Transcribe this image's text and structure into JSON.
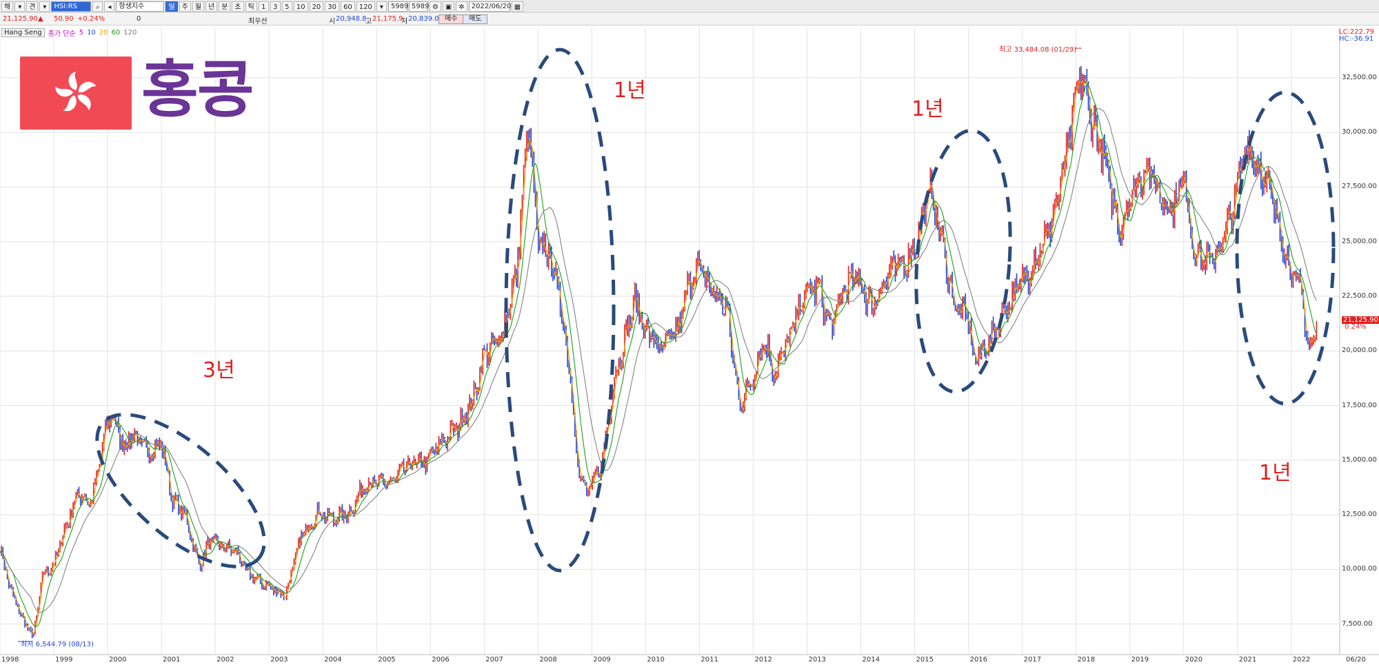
{
  "toolbar": {
    "b1": "해",
    "b2": "▾",
    "b3": "견",
    "b4": "▾",
    "symbol": "HSI:RS",
    "index_name": "항생지수",
    "periods": [
      "일",
      "주",
      "월",
      "년",
      "분",
      "초",
      "틱",
      "1",
      "3",
      "5",
      "10",
      "20",
      "30",
      "60",
      "120"
    ],
    "active_period": "일",
    "count": "5989",
    "total": "5989",
    "date": "2022/06/20"
  },
  "quote": {
    "price": "21,125.90",
    "arrow": "▲",
    "change": "50.90",
    "pct": "+0.24%",
    "volume": "0",
    "name_label": "최우선",
    "open_label": "시",
    "open": "20,948.8",
    "high_label": "고",
    "high": "21,175.9",
    "low_label": "저",
    "low": "20,839.0",
    "buy": "매수",
    "sell": "매도"
  },
  "legend": {
    "series_name": "Hang Seng",
    "ma_label": "종가 단순",
    "ma": [
      "5",
      "10",
      "20",
      "60",
      "120"
    ]
  },
  "overlay": {
    "title": "홍콩",
    "annot_3y": "3년",
    "annot_1y_a": "1년",
    "annot_1y_b": "1년",
    "annot_1y_c": "1년"
  },
  "corner": {
    "lc": "LC:222.79",
    "hc": "HC:-36.91"
  },
  "extremes": {
    "max_text": "최고 33,484.08 (01/29)",
    "min_text": "최저 6,544.79 (08/13)"
  },
  "last_price_tag": "21,125.90",
  "last_pct_tag": "0.24%",
  "colors": {
    "ma5": "#d400d4",
    "ma10": "#1f45d6",
    "ma20": "#f5a000",
    "ma60": "#18a018",
    "ma120": "#777777",
    "candle_up": "#e0201f",
    "candle_down": "#1f45d6",
    "ellipse": "#2a4a7c"
  },
  "chart_data": {
    "type": "line",
    "title": "Hang Seng",
    "x_axis_labels": [
      "1998",
      "1999",
      "2000",
      "2001",
      "2002",
      "2003",
      "2004",
      "2005",
      "2006",
      "2007",
      "2008",
      "2009",
      "2010",
      "2011",
      "2012",
      "2013",
      "2014",
      "2015",
      "2016",
      "2017",
      "2018",
      "2019",
      "2020",
      "2021",
      "2022",
      "06/20"
    ],
    "y_ticks": [
      "7,500.00",
      "10,000.00",
      "12,500.00",
      "15,000.00",
      "17,500.00",
      "20,000.00",
      "22,500.00",
      "25,000.00",
      "27,500.00",
      "30,000.00",
      "32,500.00"
    ],
    "ylim": [
      6100,
      34800
    ],
    "xlim": [
      1998.0,
      2022.9
    ],
    "series": [
      {
        "name": "Hang Seng",
        "x": [
          1998.0,
          1998.2,
          1998.45,
          1998.62,
          1998.8,
          1999.0,
          1999.2,
          1999.45,
          1999.7,
          2000.0,
          2000.1,
          2000.3,
          2000.5,
          2000.7,
          2001.0,
          2001.2,
          2001.45,
          2001.7,
          2001.9,
          2002.2,
          2002.4,
          2002.6,
          2002.8,
          2003.0,
          2003.3,
          2003.6,
          2003.9,
          2004.2,
          2004.5,
          2004.8,
          2005.0,
          2005.3,
          2005.6,
          2005.9,
          2006.2,
          2006.5,
          2006.8,
          2007.0,
          2007.3,
          2007.6,
          2007.82,
          2008.0,
          2008.2,
          2008.4,
          2008.6,
          2008.75,
          2008.9,
          2009.0,
          2009.2,
          2009.4,
          2009.6,
          2009.8,
          2010.0,
          2010.3,
          2010.6,
          2010.85,
          2011.0,
          2011.3,
          2011.5,
          2011.75,
          2011.95,
          2012.2,
          2012.4,
          2012.7,
          2012.95,
          2013.2,
          2013.45,
          2013.7,
          2013.95,
          2014.2,
          2014.5,
          2014.8,
          2015.0,
          2015.3,
          2015.5,
          2015.75,
          2016.0,
          2016.1,
          2016.4,
          2016.7,
          2016.95,
          2017.2,
          2017.5,
          2017.8,
          2018.08,
          2018.3,
          2018.55,
          2018.8,
          2019.0,
          2019.3,
          2019.6,
          2019.8,
          2020.0,
          2020.2,
          2020.5,
          2020.8,
          2021.0,
          2021.15,
          2021.4,
          2021.7,
          2021.95,
          2022.2,
          2022.33,
          2022.47
        ],
        "values": [
          11000,
          9000,
          7600,
          6900,
          9800,
          10200,
          11800,
          13500,
          13000,
          16800,
          17000,
          15600,
          16200,
          15400,
          15800,
          13200,
          12400,
          10200,
          11300,
          11000,
          10800,
          9800,
          9500,
          9200,
          8800,
          11500,
          12600,
          12300,
          12600,
          14000,
          13900,
          14000,
          14800,
          14900,
          15800,
          16500,
          17800,
          19900,
          20500,
          23500,
          30500,
          24800,
          24500,
          22500,
          19000,
          14500,
          13500,
          13800,
          15000,
          18500,
          20500,
          22300,
          21000,
          20000,
          21000,
          23500,
          23800,
          22500,
          22000,
          17500,
          18500,
          20500,
          19000,
          20800,
          22600,
          23000,
          21000,
          23000,
          23300,
          22000,
          23500,
          24000,
          24800,
          27500,
          25000,
          22000,
          21500,
          19500,
          20500,
          22000,
          23000,
          24000,
          25500,
          28500,
          32800,
          30500,
          28500,
          25500,
          27000,
          28500,
          27000,
          26500,
          28000,
          24500,
          24000,
          25500,
          27500,
          29500,
          28500,
          26500,
          24000,
          22500,
          20000,
          21125.9
        ]
      }
    ],
    "max_point": {
      "x": 2018.08,
      "value": 33484.08,
      "label": "최고 33,484.08 (01/29)"
    },
    "min_point": {
      "x": 1998.62,
      "value": 6544.79,
      "label": "최저 6,544.79 (08/13)"
    },
    "moving_averages": [
      "5",
      "10",
      "20",
      "60",
      "120"
    ],
    "grid": true
  }
}
